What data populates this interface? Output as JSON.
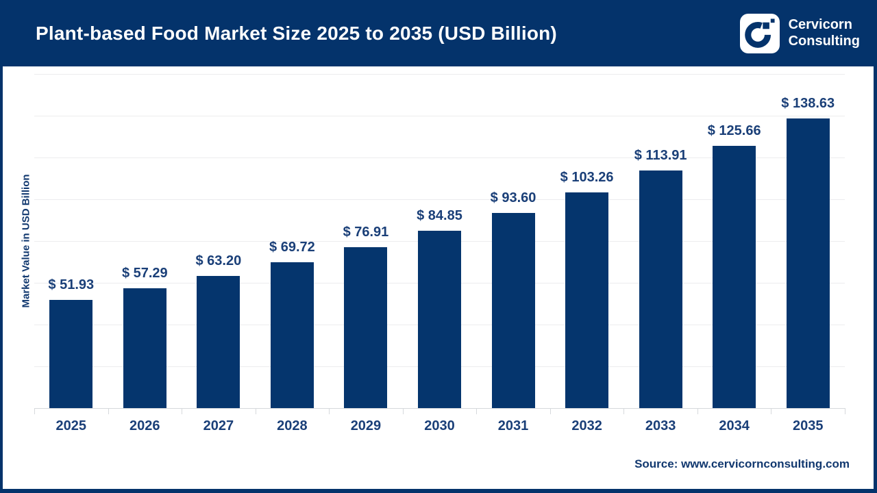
{
  "header": {
    "title": "Plant-based Food Market Size 2025 to 2035 (USD Billion)",
    "background": "#04336b",
    "logo": {
      "icon": "cervicorn-c-icon",
      "line1": "Cervicorn",
      "line2": "Consulting"
    }
  },
  "chart_data": {
    "type": "bar",
    "title": "Plant-based Food Market Size 2025 to 2035 (USD Billion)",
    "categories": [
      "2025",
      "2026",
      "2027",
      "2028",
      "2029",
      "2030",
      "2031",
      "2032",
      "2033",
      "2034",
      "2035"
    ],
    "values": [
      51.93,
      57.29,
      63.2,
      69.72,
      76.91,
      84.85,
      93.6,
      103.26,
      113.91,
      125.66,
      138.63
    ],
    "labels": [
      "$ 51.93",
      "$ 57.29",
      "$ 63.20",
      "$ 69.72",
      "$ 76.91",
      "$ 84.85",
      "$ 93.60",
      "$ 103.26",
      "$ 113.91",
      "$ 125.66",
      "$ 138.63"
    ],
    "xlabel": "",
    "ylabel": "Market Value in USD Billion",
    "ylim": [
      0,
      160
    ],
    "gridline_step": 20,
    "grid": "horizontal",
    "legend_position": "none",
    "bar_color": "#05356d",
    "label_color": "#1a3f78"
  },
  "footer": {
    "source": "Source: www.cervicornconsulting.com"
  }
}
